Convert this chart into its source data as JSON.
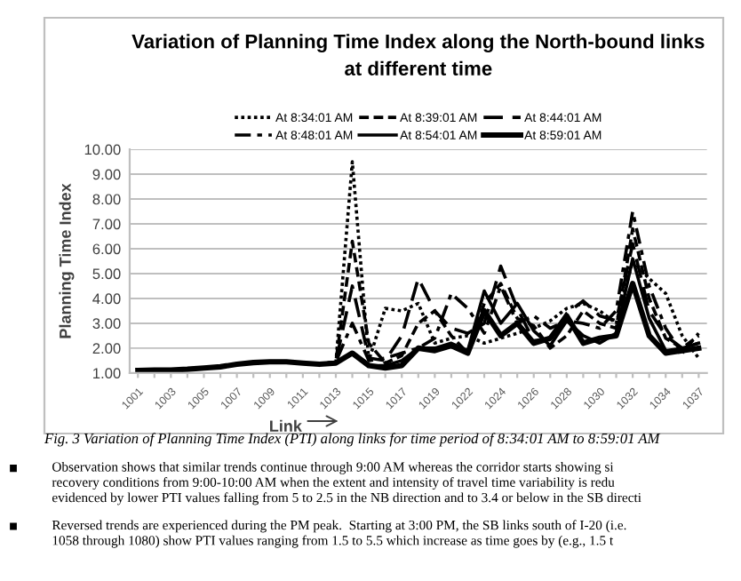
{
  "chart_data": {
    "type": "line",
    "title": "Variation of Planning Time Index along the North-bound links\nat different time",
    "xlabel": "Link",
    "ylabel": "Planning Time Index",
    "categories": [
      "1001",
      null,
      "1003",
      null,
      "1005",
      null,
      "1007",
      null,
      "1009",
      null,
      "1011",
      null,
      "1013",
      null,
      "1015",
      null,
      "1017",
      null,
      "1019",
      null,
      "1022",
      null,
      "1024",
      null,
      "1026",
      null,
      "1028",
      null,
      "1030",
      null,
      "1032",
      null,
      "1034",
      null,
      "1037"
    ],
    "series": [
      {
        "name": "At 8:34:01 AM",
        "color": "#000000",
        "line_style": "dotted",
        "values": [
          1.1,
          1.12,
          1.12,
          1.15,
          1.2,
          1.25,
          1.35,
          1.42,
          1.45,
          1.45,
          1.4,
          1.35,
          1.4,
          9.5,
          1.5,
          3.6,
          3.5,
          3.8,
          2.2,
          2.4,
          2.5,
          2.2,
          2.4,
          2.6,
          2.8,
          3.1,
          3.6,
          3.8,
          3.5,
          3.0,
          5.5,
          4.8,
          4.2,
          2.5,
          1.6
        ]
      },
      {
        "name": "At 8:39:01 AM",
        "color": "#000000",
        "line_style": "dashed",
        "values": [
          1.1,
          1.12,
          1.12,
          1.15,
          1.2,
          1.25,
          1.35,
          1.42,
          1.45,
          1.45,
          1.4,
          1.35,
          1.45,
          6.3,
          2.2,
          1.4,
          1.7,
          3.0,
          3.5,
          2.5,
          1.8,
          3.8,
          4.6,
          3.2,
          2.9,
          2.0,
          2.5,
          3.5,
          3.0,
          2.8,
          6.8,
          4.0,
          2.4,
          2.0,
          2.5
        ]
      },
      {
        "name": "At 8:44:01 AM",
        "color": "#000000",
        "line_style": "longdash",
        "values": [
          1.1,
          1.12,
          1.12,
          1.15,
          1.2,
          1.25,
          1.35,
          1.42,
          1.45,
          1.45,
          1.4,
          1.35,
          1.45,
          4.5,
          1.6,
          1.5,
          2.5,
          4.8,
          3.5,
          2.8,
          2.6,
          3.0,
          5.3,
          3.6,
          2.3,
          2.4,
          3.4,
          3.9,
          3.3,
          3.1,
          6.2,
          3.5,
          2.5,
          2.0,
          2.2
        ]
      },
      {
        "name": "At 8:48:01 AM",
        "color": "#000000",
        "line_style": "dashdot",
        "values": [
          1.1,
          1.12,
          1.12,
          1.15,
          1.2,
          1.25,
          1.35,
          1.42,
          1.45,
          1.45,
          1.4,
          1.35,
          1.45,
          3.0,
          1.5,
          1.6,
          1.8,
          2.0,
          2.4,
          4.2,
          3.6,
          2.6,
          4.5,
          3.0,
          3.3,
          2.8,
          3.1,
          3.0,
          2.8,
          3.5,
          7.5,
          4.5,
          2.8,
          1.8,
          2.6
        ]
      },
      {
        "name": "At 8:54:01 AM",
        "color": "#000000",
        "line_style": "solid",
        "values": [
          1.1,
          1.12,
          1.12,
          1.15,
          1.2,
          1.25,
          1.35,
          1.42,
          1.45,
          1.45,
          1.4,
          1.35,
          1.4,
          1.8,
          1.3,
          1.3,
          1.5,
          2.0,
          2.0,
          2.2,
          1.9,
          4.3,
          3.0,
          3.8,
          2.7,
          2.1,
          3.1,
          2.5,
          2.2,
          2.6,
          5.6,
          3.2,
          1.9,
          2.0,
          2.2
        ]
      },
      {
        "name": "At 8:59:01 AM",
        "color": "#000000",
        "line_style": "solid",
        "values": [
          1.1,
          1.12,
          1.12,
          1.15,
          1.2,
          1.25,
          1.35,
          1.42,
          1.45,
          1.45,
          1.4,
          1.35,
          1.4,
          1.8,
          1.3,
          1.2,
          1.3,
          2.0,
          1.9,
          2.1,
          1.8,
          3.5,
          2.5,
          3.0,
          2.2,
          2.4,
          3.3,
          2.2,
          2.4,
          2.5,
          4.6,
          2.5,
          1.8,
          1.9,
          2.0
        ]
      }
    ],
    "ylim": [
      1,
      10
    ],
    "yticks": [
      {
        "value": 1,
        "label": "1.00"
      },
      {
        "value": 2,
        "label": "2.00"
      },
      {
        "value": 3,
        "label": "3.00"
      },
      {
        "value": 4,
        "label": "4.00"
      },
      {
        "value": 5,
        "label": "5.00"
      },
      {
        "value": 6,
        "label": "6.00"
      },
      {
        "value": 7,
        "label": "7.00"
      },
      {
        "value": 8,
        "label": "8.00"
      },
      {
        "value": 9,
        "label": "9.00"
      },
      {
        "value": 10,
        "label": "10.00"
      }
    ],
    "grid": "y",
    "legend": "top",
    "marker": "none",
    "annotations": [
      "Fig. 3 Variation of Planning Time Index (PTI) along links for time period of 8:34:01 AM to 8:59:01 AM",
      "Observation shows that similar trends continue through 9:00 AM whereas the corridor starts showing si\nrecovery conditions from 9:00-10:00 AM when the extent and intensity of travel time variability is redu\nevidenced by lower PTI values falling from 5 to 2.5 in the NB direction and to 3.4 or below in the SB directi",
      "Reversed trends are experienced during the PM peak.  Starting at 3:00 PM, the SB links south of I-20 (i.e.\n1058 through 1080) show PTI values ranging from 1.5 to 5.5 which increase as time goes by (e.g., 1.5 t"
    ]
  }
}
